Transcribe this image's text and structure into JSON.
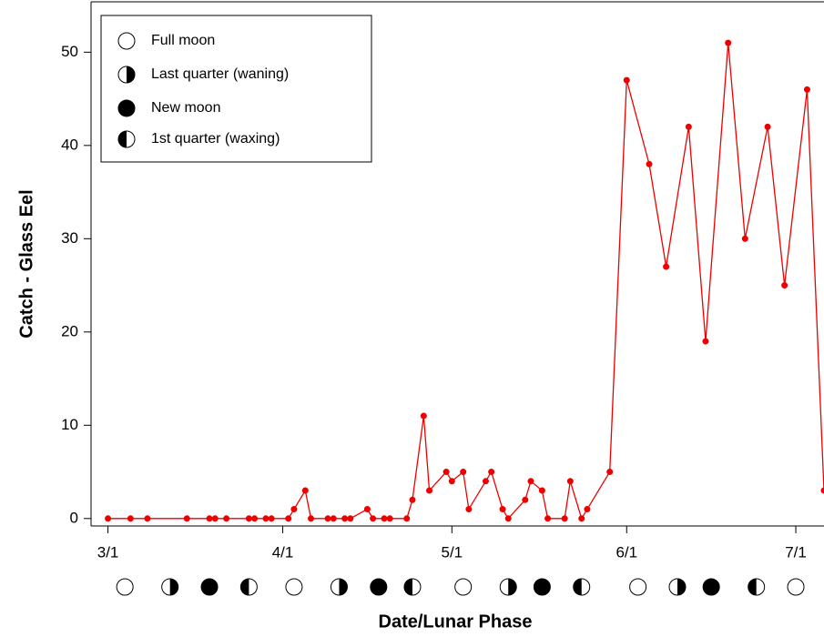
{
  "chart_data": {
    "type": "line",
    "ylabel": "Catch - Glass Eel",
    "xlabel": "Date/Lunar Phase",
    "x": [
      "3/1",
      "3/5",
      "3/8",
      "3/15",
      "3/19",
      "3/20",
      "3/22",
      "3/26",
      "3/27",
      "3/29",
      "3/30",
      "4/2",
      "4/3",
      "4/5",
      "4/6",
      "4/9",
      "4/10",
      "4/12",
      "4/13",
      "4/16",
      "4/17",
      "4/19",
      "4/20",
      "4/23",
      "4/24",
      "4/26",
      "4/27",
      "4/30",
      "5/1",
      "5/3",
      "5/4",
      "5/7",
      "5/8",
      "5/10",
      "5/11",
      "5/14",
      "5/15",
      "5/17",
      "5/18",
      "5/21",
      "5/22",
      "5/24",
      "5/25",
      "5/29",
      "6/1",
      "6/5",
      "6/8",
      "6/12",
      "6/15",
      "6/19",
      "6/22",
      "6/26",
      "6/29",
      "7/3",
      "7/6"
    ],
    "series": [
      {
        "color": "#ee0000",
        "values": [
          0,
          0,
          0,
          0,
          0,
          0,
          0,
          0,
          0,
          0,
          0,
          0,
          1,
          3,
          0,
          0,
          0,
          0,
          0,
          1,
          0,
          0,
          0,
          0,
          2,
          11,
          3,
          5,
          4,
          5,
          1,
          4,
          5,
          1,
          0,
          2,
          4,
          3,
          0,
          0,
          4,
          0,
          1,
          5,
          47,
          38,
          27,
          42,
          19,
          51,
          30,
          42,
          25,
          46,
          3
        ]
      }
    ],
    "xlim": [
      "2/26",
      "7/6"
    ],
    "xticks": [
      "3/1",
      "4/1",
      "5/1",
      "6/1",
      "7/1"
    ],
    "ylim": [
      -0.8,
      55.4
    ],
    "yticks": [
      0,
      10,
      20,
      30,
      40,
      50
    ],
    "legend": [
      "Full moon",
      "Last quarter (waning)",
      "New moon",
      "1st quarter (waxing)"
    ],
    "lunar_phases": [
      {
        "x": "3/4",
        "phase": 0
      },
      {
        "x": "3/12",
        "phase": 1
      },
      {
        "x": "3/19",
        "phase": 2
      },
      {
        "x": "3/26",
        "phase": 3
      },
      {
        "x": "4/3",
        "phase": 0
      },
      {
        "x": "4/11",
        "phase": 1
      },
      {
        "x": "4/18",
        "phase": 2
      },
      {
        "x": "4/24",
        "phase": 3
      },
      {
        "x": "5/3",
        "phase": 0
      },
      {
        "x": "5/11",
        "phase": 1
      },
      {
        "x": "5/17",
        "phase": 2
      },
      {
        "x": "5/24",
        "phase": 3
      },
      {
        "x": "6/3",
        "phase": 0
      },
      {
        "x": "6/10",
        "phase": 1
      },
      {
        "x": "6/16",
        "phase": 2
      },
      {
        "x": "6/24",
        "phase": 3
      },
      {
        "x": "7/1",
        "phase": 0
      }
    ]
  }
}
